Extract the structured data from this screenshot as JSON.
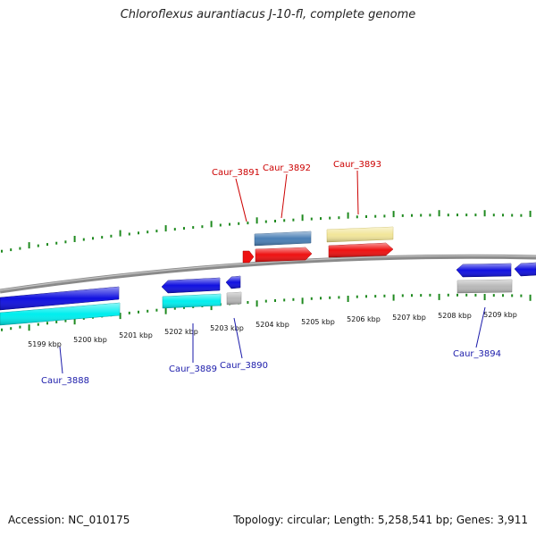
{
  "title": "Chloroflexus aurantiacus J-10-fl, complete genome",
  "footer": {
    "accession": "Accession: NC_010175",
    "summary": "Topology: circular; Length: 5,258,541 bp; Genes: 3,911"
  },
  "colors": {
    "backbone": "#8a8a8a",
    "ticks": "#1f8a1f",
    "label_forward": "#cc0000",
    "label_reverse": "#1a1aaa"
  },
  "scale_labels": [
    "5199 kbp",
    "5200 kbp",
    "5201 kbp",
    "5202 kbp",
    "5203 kbp",
    "5204 kbp",
    "5205 kbp",
    "5206 kbp",
    "5207 kbp",
    "5208 kbp",
    "5209 kbp"
  ],
  "genes": [
    {
      "name": "Caur_3888",
      "strand": "reverse",
      "color": "#1010e0"
    },
    {
      "name": "Caur_3889",
      "strand": "reverse",
      "color": "#1010e0"
    },
    {
      "name": "Caur_3890",
      "strand": "reverse",
      "color": "#1010e0"
    },
    {
      "name": "Caur_3891",
      "strand": "forward",
      "color": "#ee1111"
    },
    {
      "name": "Caur_3892",
      "strand": "forward",
      "color": "#ee1111"
    },
    {
      "name": "Caur_3893",
      "strand": "forward",
      "color": "#ee1111"
    },
    {
      "name": "Caur_3894",
      "strand": "reverse",
      "color": "#1010e0"
    }
  ],
  "features": [
    {
      "kind": "CDS",
      "color": "#00eeee"
    },
    {
      "kind": "CDS",
      "color": "#00eeee"
    },
    {
      "kind": "misc",
      "color": "#b8b8b8"
    },
    {
      "kind": "misc",
      "color": "#4a7fb5"
    },
    {
      "kind": "misc",
      "color": "#f2e69a"
    },
    {
      "kind": "misc",
      "color": "#b8b8b8"
    }
  ]
}
